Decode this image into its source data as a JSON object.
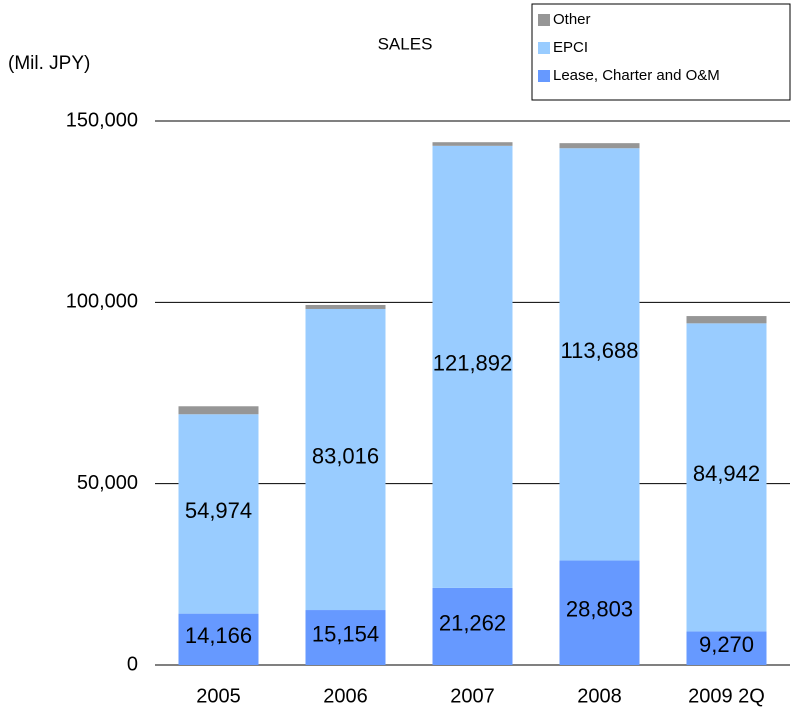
{
  "chart_data": {
    "type": "stacked_bar",
    "title": "SALES",
    "y_label": "(Mil. JPY)",
    "categories": [
      "2005",
      "2006",
      "2007",
      "2008",
      "2009 2Q"
    ],
    "series": [
      {
        "name": "Lease, Charter and O&M",
        "color": "#6699ff",
        "values": [
          14166,
          15154,
          21262,
          28803,
          9270
        ],
        "value_labels": [
          "14,166",
          "15,154",
          "21,262",
          "28,803",
          "9,270"
        ]
      },
      {
        "name": "EPCI",
        "color": "#99ccff",
        "values": [
          54974,
          83016,
          121892,
          113688,
          84942
        ],
        "value_labels": [
          "54,974",
          "83,016",
          "121,892",
          "113,688",
          "84,942"
        ]
      },
      {
        "name": "Other",
        "color": "#969696",
        "values": [
          2200,
          1100,
          1000,
          1400,
          2000
        ]
      }
    ],
    "ylim": [
      0,
      150000
    ],
    "yticks": [
      0,
      {
        "value": 50000,
        "label": "50,000"
      },
      {
        "value": 100000,
        "label": "100,000"
      },
      {
        "value": 150000,
        "label": "150,000"
      }
    ],
    "grid": true,
    "legend": "top-right"
  }
}
